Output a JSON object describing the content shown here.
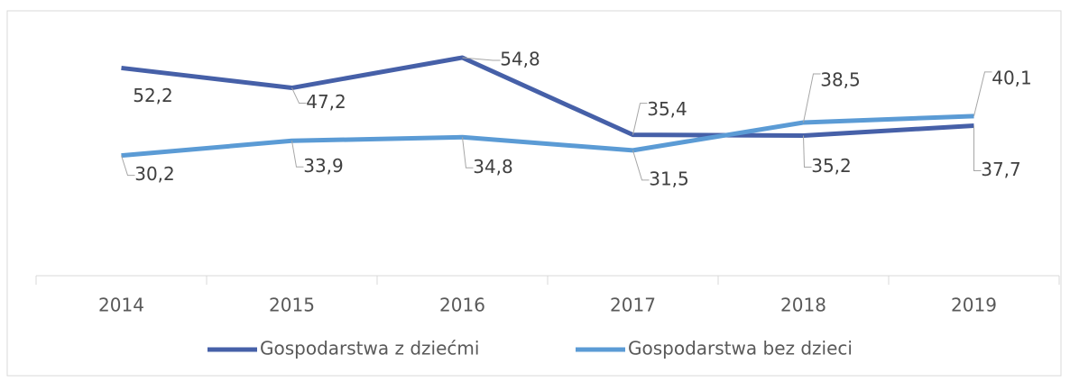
{
  "chart_data": {
    "type": "line",
    "categories": [
      "2014",
      "2015",
      "2016",
      "2017",
      "2018",
      "2019"
    ],
    "series": [
      {
        "name": "Gospodarstwa z dziećmi",
        "color": "#4660a8",
        "values": [
          52.2,
          47.2,
          54.8,
          35.4,
          35.2,
          37.7
        ],
        "value_labels": [
          "52,2",
          "47,2",
          "54,8",
          "35,4",
          "35,2",
          "37,7"
        ]
      },
      {
        "name": "Gospodarstwa bez dzieci",
        "color": "#5b9bd5",
        "values": [
          30.2,
          33.9,
          34.8,
          31.5,
          38.5,
          40.1
        ],
        "value_labels": [
          "30,2",
          "33,9",
          "34,8",
          "31,5",
          "38,5",
          "40,1"
        ]
      }
    ],
    "ylim": [
      0,
      60
    ]
  }
}
